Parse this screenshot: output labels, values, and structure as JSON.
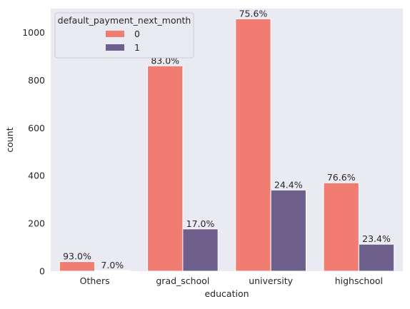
{
  "chart_data": {
    "type": "bar",
    "categories": [
      "Others",
      "grad_school",
      "university",
      "highschool"
    ],
    "series": [
      {
        "name": "0",
        "values": [
          40,
          860,
          1057,
          370
        ],
        "labels": [
          "93.0%",
          "83.0%",
          "75.6%",
          "76.6%"
        ],
        "color": "#F07C72"
      },
      {
        "name": "1",
        "values": [
          3,
          177,
          340,
          113
        ],
        "labels": [
          "7.0%",
          "17.0%",
          "24.4%",
          "23.4%"
        ],
        "color": "#6E608C"
      }
    ],
    "xlabel": "education",
    "ylabel": "count",
    "ylim": [
      0,
      1100
    ],
    "yticks": [
      0,
      200,
      400,
      600,
      800,
      1000
    ],
    "legend": {
      "title": "default_payment_next_month",
      "placement": "top-left"
    },
    "grid": false,
    "background": "#EAEAF2"
  }
}
